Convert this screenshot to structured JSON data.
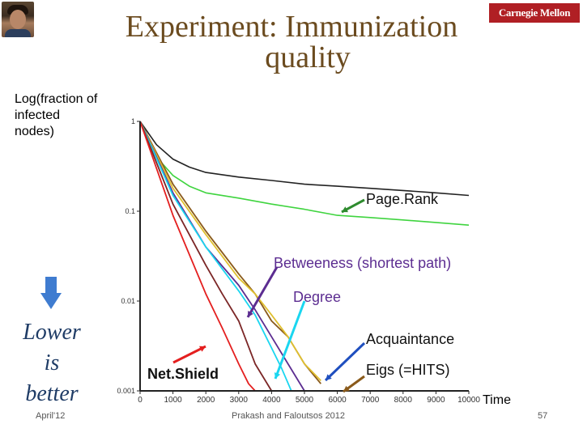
{
  "slide": {
    "title_line1": "Experiment: Immunization",
    "title_line2": "quality",
    "logo_text": "Carnegie Mellon",
    "ylabel_lines": [
      "Log(fraction of",
      "infected",
      "nodes)"
    ],
    "note_lines": [
      "Lower",
      "is",
      "better"
    ],
    "footer_date": "April'12",
    "footer_authors": "Prakash and Faloutsos 2012",
    "page_number": "57",
    "icons": {
      "avatar": "presenter-photo",
      "arrow": "arrow-down-icon"
    },
    "colors": {
      "title": "#6b4b1f",
      "arrow": "#3f7cd0",
      "note": "#1f3c66",
      "logo_bg": "#b01f24"
    }
  },
  "chart_data": {
    "type": "line",
    "title": "",
    "xlabel": "Time",
    "ylabel": "Log(fraction of infected nodes)",
    "y_scale": "log",
    "xlim": [
      0,
      10000
    ],
    "ylim": [
      0.001,
      1
    ],
    "x_ticks": [
      "0",
      "1000",
      "2000",
      "3000",
      "4000",
      "5000",
      "6000",
      "7000",
      "8000",
      "9000",
      "10000"
    ],
    "y_ticks": [
      "1",
      "0.1",
      "0.01",
      "0.001"
    ],
    "x_tick_values": [
      0,
      1000,
      2000,
      3000,
      4000,
      5000,
      6000,
      7000,
      8000,
      9000,
      10000
    ],
    "y_tick_values": [
      1,
      0.1,
      0.01,
      0.001
    ],
    "series": [
      {
        "color": "#222222",
        "x": [
          0,
          500,
          1000,
          1500,
          2000,
          3000,
          4000,
          5000,
          6000,
          7000,
          8000,
          9000,
          10000
        ],
        "y": [
          1,
          0.55,
          0.38,
          0.31,
          0.27,
          0.24,
          0.22,
          0.2,
          0.19,
          0.18,
          0.17,
          0.16,
          0.15
        ]
      },
      {
        "color": "#3fd43f",
        "x": [
          0,
          500,
          1000,
          1500,
          2000,
          3000,
          4000,
          5000,
          6000,
          7000,
          8000,
          9000,
          10000
        ],
        "y": [
          1,
          0.4,
          0.25,
          0.19,
          0.16,
          0.14,
          0.12,
          0.105,
          0.09,
          0.085,
          0.08,
          0.075,
          0.07
        ]
      },
      {
        "color": "#8a5a1a",
        "x": [
          0,
          1000,
          2000,
          3000,
          3500,
          4000,
          4500,
          5000,
          5500
        ],
        "y": [
          1,
          0.2,
          0.06,
          0.02,
          0.012,
          0.006,
          0.004,
          0.002,
          0.0012
        ]
      },
      {
        "color": "#e0c030",
        "x": [
          0,
          1000,
          2000,
          3000,
          3500,
          4000,
          4500,
          5000,
          5500
        ],
        "y": [
          1,
          0.18,
          0.055,
          0.018,
          0.012,
          0.007,
          0.004,
          0.002,
          0.0013
        ]
      },
      {
        "color": "#5c2d91",
        "x": [
          0,
          1000,
          2000,
          3000,
          3500,
          4000,
          4500,
          5000
        ],
        "y": [
          1,
          0.16,
          0.04,
          0.015,
          0.008,
          0.004,
          0.002,
          0.001
        ]
      },
      {
        "color": "#1ad6f0",
        "x": [
          0,
          1000,
          2000,
          3000,
          3500,
          4000,
          4300,
          4600
        ],
        "y": [
          1,
          0.15,
          0.04,
          0.013,
          0.007,
          0.003,
          0.0018,
          0.001
        ]
      },
      {
        "color": "#7b2626",
        "x": [
          0,
          1000,
          2000,
          2500,
          3000,
          3500,
          4000
        ],
        "y": [
          1,
          0.12,
          0.025,
          0.012,
          0.006,
          0.002,
          0.001
        ]
      },
      {
        "color": "#e41f1f",
        "x": [
          0,
          1000,
          2000,
          2500,
          3000,
          3300,
          3500
        ],
        "y": [
          1,
          0.09,
          0.012,
          0.005,
          0.002,
          0.0012,
          0.001
        ]
      }
    ],
    "annotations": [
      {
        "text": "Page.Rank"
      },
      {
        "text": "Betweeness (shortest path)"
      },
      {
        "text": "Degree"
      },
      {
        "text": "Acquaintance"
      },
      {
        "text": "Eigs (=HITS)"
      },
      {
        "text": "Net.Shield"
      }
    ]
  }
}
